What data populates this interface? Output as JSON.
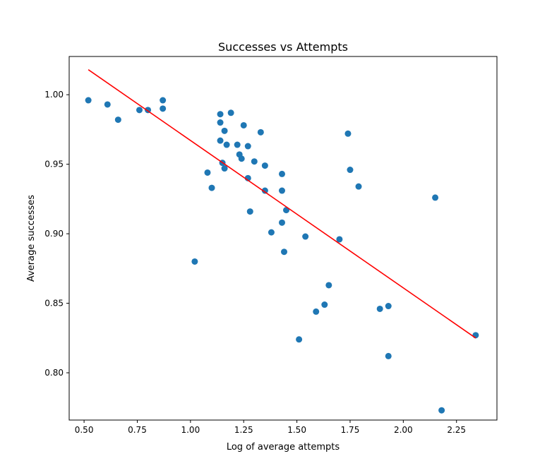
{
  "chart_data": {
    "type": "scatter",
    "title": "Successes vs Attempts",
    "xlabel": "Log of average attempts",
    "ylabel": "Average successes",
    "xlim": [
      0.43,
      2.44
    ],
    "ylim": [
      0.766,
      1.0275
    ],
    "xticks": [
      0.5,
      0.75,
      1.0,
      1.25,
      1.5,
      1.75,
      2.0,
      2.25
    ],
    "xtick_labels": [
      "0.50",
      "0.75",
      "1.00",
      "1.25",
      "1.50",
      "1.75",
      "2.00",
      "2.25"
    ],
    "yticks": [
      0.8,
      0.85,
      0.9,
      0.95,
      1.0
    ],
    "ytick_labels": [
      "0.80",
      "0.85",
      "0.90",
      "0.95",
      "1.00"
    ],
    "grid": false,
    "point_color": "#1f77b4",
    "line_color": "#ff0000",
    "series": [
      {
        "type": "scatter",
        "points": [
          [
            0.52,
            0.996
          ],
          [
            0.61,
            0.993
          ],
          [
            0.66,
            0.982
          ],
          [
            0.76,
            0.989
          ],
          [
            0.8,
            0.989
          ],
          [
            0.87,
            0.996
          ],
          [
            0.87,
            0.99
          ],
          [
            1.02,
            0.88
          ],
          [
            1.08,
            0.944
          ],
          [
            1.1,
            0.933
          ],
          [
            1.14,
            0.986
          ],
          [
            1.14,
            0.98
          ],
          [
            1.14,
            0.967
          ],
          [
            1.15,
            0.951
          ],
          [
            1.16,
            0.947
          ],
          [
            1.16,
            0.974
          ],
          [
            1.17,
            0.964
          ],
          [
            1.19,
            0.987
          ],
          [
            1.22,
            0.964
          ],
          [
            1.23,
            0.957
          ],
          [
            1.24,
            0.954
          ],
          [
            1.25,
            0.978
          ],
          [
            1.27,
            0.963
          ],
          [
            1.27,
            0.94
          ],
          [
            1.28,
            0.916
          ],
          [
            1.3,
            0.952
          ],
          [
            1.33,
            0.973
          ],
          [
            1.35,
            0.949
          ],
          [
            1.35,
            0.931
          ],
          [
            1.38,
            0.901
          ],
          [
            1.43,
            0.943
          ],
          [
            1.43,
            0.931
          ],
          [
            1.43,
            0.908
          ],
          [
            1.44,
            0.887
          ],
          [
            1.45,
            0.917
          ],
          [
            1.51,
            0.824
          ],
          [
            1.54,
            0.898
          ],
          [
            1.59,
            0.844
          ],
          [
            1.63,
            0.849
          ],
          [
            1.65,
            0.863
          ],
          [
            1.7,
            0.896
          ],
          [
            1.74,
            0.972
          ],
          [
            1.75,
            0.946
          ],
          [
            1.79,
            0.934
          ],
          [
            1.89,
            0.846
          ],
          [
            1.93,
            0.848
          ],
          [
            1.93,
            0.812
          ],
          [
            2.15,
            0.926
          ],
          [
            2.18,
            0.773
          ],
          [
            2.34,
            0.827
          ]
        ]
      },
      {
        "type": "line",
        "points": [
          [
            0.52,
            1.018
          ],
          [
            2.34,
            0.825
          ]
        ]
      }
    ]
  }
}
